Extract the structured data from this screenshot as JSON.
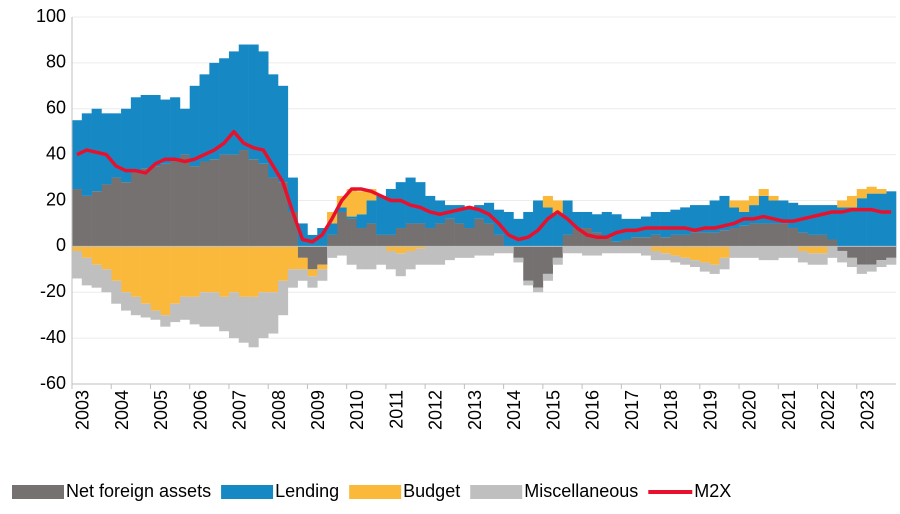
{
  "chart_data": {
    "type": "bar",
    "stacked": true,
    "categories": [
      "2003",
      null,
      null,
      null,
      "2004",
      null,
      null,
      null,
      "2005",
      null,
      null,
      null,
      "2006",
      null,
      null,
      null,
      "2007",
      null,
      null,
      null,
      "2008",
      null,
      null,
      null,
      "2009",
      null,
      null,
      null,
      "2010",
      null,
      null,
      null,
      "2011",
      null,
      null,
      null,
      "2012",
      null,
      null,
      null,
      "2013",
      null,
      null,
      null,
      "2014",
      null,
      null,
      null,
      "2015",
      null,
      null,
      null,
      "2016",
      null,
      null,
      null,
      "2017",
      null,
      null,
      null,
      "2018",
      null,
      null,
      null,
      "2019",
      null,
      null,
      null,
      "2020",
      null,
      null,
      null,
      "2021",
      null,
      null,
      null,
      "2022",
      null,
      null,
      null,
      "2023",
      null,
      null,
      null
    ],
    "series": [
      {
        "name": "Net foreign assets",
        "color": "#767171",
        "values": [
          25,
          22,
          24,
          27,
          30,
          28,
          33,
          34,
          35,
          36,
          38,
          40,
          35,
          37,
          38,
          40,
          40,
          42,
          38,
          36,
          30,
          28,
          15,
          -5,
          -10,
          -8,
          5,
          15,
          12,
          8,
          10,
          5,
          5,
          8,
          10,
          10,
          8,
          10,
          12,
          10,
          8,
          12,
          10,
          5,
          0,
          -5,
          -15,
          -18,
          -12,
          -5,
          5,
          8,
          8,
          6,
          4,
          2,
          3,
          4,
          4,
          5,
          4,
          5,
          5,
          6,
          6,
          6,
          7,
          8,
          9,
          10,
          10,
          10,
          10,
          8,
          6,
          5,
          5,
          3,
          -2,
          -5,
          -8,
          -8,
          -6,
          -5
        ]
      },
      {
        "name": "Lending",
        "color": "#1689c4",
        "values": [
          30,
          36,
          36,
          31,
          28,
          32,
          32,
          32,
          31,
          28,
          27,
          20,
          35,
          38,
          42,
          42,
          45,
          46,
          50,
          49,
          45,
          42,
          15,
          10,
          5,
          8,
          5,
          2,
          1,
          6,
          10,
          17,
          20,
          20,
          20,
          18,
          14,
          10,
          6,
          8,
          9,
          6,
          9,
          11,
          15,
          12,
          15,
          20,
          17,
          14,
          15,
          7,
          7,
          8,
          11,
          12,
          9,
          8,
          9,
          10,
          11,
          11,
          12,
          12,
          12,
          14,
          15,
          9,
          6,
          8,
          12,
          10,
          10,
          11,
          12,
          13,
          13,
          15,
          17,
          17,
          21,
          23,
          23,
          24
        ]
      },
      {
        "name": "Budget",
        "color": "#fbb93c",
        "values": [
          -2,
          -5,
          -8,
          -10,
          -15,
          -20,
          -22,
          -25,
          -28,
          -30,
          -25,
          -22,
          -22,
          -20,
          -20,
          -22,
          -20,
          -22,
          -22,
          -20,
          -20,
          -15,
          -10,
          -5,
          -3,
          -2,
          5,
          5,
          12,
          10,
          5,
          0,
          -2,
          -3,
          -2,
          -1,
          0,
          0,
          0,
          0,
          0,
          0,
          0,
          0,
          0,
          0,
          0,
          0,
          5,
          6,
          0,
          0,
          0,
          0,
          0,
          0,
          0,
          0,
          0,
          -2,
          -3,
          -4,
          -5,
          -6,
          -7,
          -8,
          -5,
          3,
          5,
          4,
          3,
          2,
          0,
          0,
          -2,
          -3,
          -3,
          0,
          3,
          5,
          4,
          3,
          2,
          0
        ]
      },
      {
        "name": "Miscellaneous",
        "color": "#bfbfbf",
        "values": [
          -12,
          -12,
          -10,
          -10,
          -10,
          -8,
          -8,
          -6,
          -4,
          -5,
          -8,
          -10,
          -12,
          -15,
          -15,
          -15,
          -20,
          -20,
          -22,
          -20,
          -18,
          -15,
          -8,
          -5,
          -5,
          -5,
          -5,
          -4,
          -8,
          -10,
          -10,
          -8,
          -8,
          -10,
          -8,
          -7,
          -8,
          -8,
          -6,
          -5,
          -5,
          -4,
          -4,
          -3,
          -3,
          -2,
          -2,
          -2,
          -3,
          -3,
          -3,
          -3,
          -4,
          -4,
          -3,
          -3,
          -3,
          -3,
          -4,
          -4,
          -3,
          -3,
          -3,
          -3,
          -4,
          -4,
          -5,
          -5,
          -5,
          -5,
          -6,
          -6,
          -5,
          -5,
          -5,
          -5,
          -5,
          -5,
          -5,
          -4,
          -4,
          -3,
          -3,
          -3
        ]
      },
      {
        "name": "M2X",
        "color": "#e8112d",
        "type": "line",
        "values": [
          40,
          42,
          41,
          40,
          35,
          33,
          33,
          32,
          36,
          38,
          38,
          37,
          38,
          40,
          42,
          45,
          50,
          45,
          43,
          42,
          35,
          28,
          15,
          3,
          2,
          5,
          12,
          20,
          25,
          25,
          24,
          22,
          20,
          20,
          18,
          17,
          15,
          14,
          15,
          16,
          17,
          16,
          14,
          10,
          5,
          3,
          4,
          7,
          12,
          15,
          12,
          8,
          5,
          4,
          4,
          6,
          7,
          7,
          8,
          8,
          8,
          8,
          8,
          7,
          8,
          8,
          9,
          10,
          12,
          12,
          13,
          12,
          11,
          11,
          12,
          13,
          14,
          15,
          15,
          16,
          16,
          16,
          15,
          15
        ]
      }
    ],
    "ylim": [
      -60,
      100
    ],
    "yticks": [
      100,
      80,
      60,
      40,
      20,
      0,
      -20,
      -40,
      -60
    ],
    "grid": true,
    "legend": "bottom"
  }
}
